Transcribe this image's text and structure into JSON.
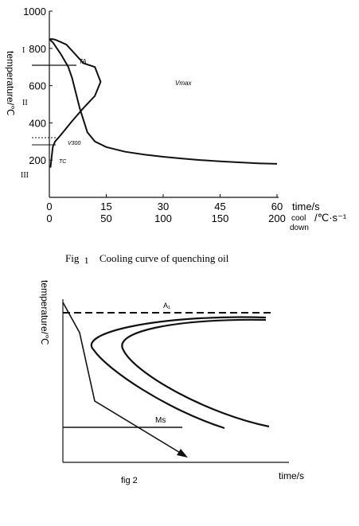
{
  "figure1": {
    "caption_prefix": "Fig",
    "caption_number": "1",
    "caption_text": "Cooling curve of quenching oil",
    "y_axis_label": "temperature/℃",
    "x_axis_label_time": "time/s",
    "x_axis_label_rate_top": "cool",
    "x_axis_label_rate_bottom": "down",
    "x_axis_label_rate_unit": "/℃·s⁻¹",
    "stage_labels": [
      "I",
      "II",
      "III"
    ],
    "point_labels": {
      "ta": "TA",
      "vmax": "Vmax",
      "v300": "V300",
      "tc": "TC"
    }
  },
  "figure2": {
    "caption": "fig 2",
    "y_axis_label": "temperature/℃",
    "x_axis_label": "time/s",
    "a1_label": "A₁",
    "ms_label": "Ms"
  },
  "chart_data": [
    {
      "type": "line",
      "title": "Cooling curve of quenching oil",
      "xlabel": "time/s",
      "x2label": "cool down /℃·s⁻¹",
      "ylabel": "temperature/℃",
      "xlim": [
        0,
        60
      ],
      "x2lim": [
        0,
        200
      ],
      "ylim": [
        0,
        1000
      ],
      "xticks": [
        0,
        15,
        30,
        45,
        60
      ],
      "x2ticks": [
        0,
        50,
        100,
        150,
        200
      ],
      "yticks": [
        200,
        400,
        600,
        800,
        1000
      ],
      "grid": false,
      "series": [
        {
          "name": "cooling curve (time/s)",
          "axis": "time",
          "x": [
            0,
            1,
            2,
            3,
            4,
            5,
            6,
            8,
            10,
            12,
            15,
            20,
            25,
            30,
            35,
            40,
            45,
            50,
            55,
            60
          ],
          "y": [
            850,
            830,
            800,
            770,
            735,
            700,
            640,
            480,
            350,
            300,
            270,
            245,
            230,
            218,
            208,
            200,
            193,
            188,
            183,
            180
          ]
        },
        {
          "name": "cooling rate curve (cool down /℃·s⁻¹)",
          "axis": "rate",
          "x": [
            0,
            3,
            6,
            15,
            30,
            40,
            45,
            40,
            30,
            20,
            12,
            8,
            5,
            3,
            1
          ],
          "y": [
            850,
            850,
            845,
            820,
            720,
            700,
            620,
            545,
            480,
            410,
            350,
            320,
            300,
            270,
            160
          ]
        }
      ],
      "annotations": [
        {
          "label": "TA",
          "x_rate": 25,
          "y": 730
        },
        {
          "label": "Vmax",
          "x_rate": 100,
          "y": 620
        },
        {
          "label": "V300",
          "x_rate": 3,
          "y": 300
        },
        {
          "label": "TC",
          "x_rate": 0,
          "y": 250
        }
      ],
      "stages": [
        "I",
        "II",
        "III"
      ]
    },
    {
      "type": "line",
      "title": "",
      "xlabel": "time/s",
      "ylabel": "temperature/℃",
      "grid": false,
      "reference_lines": [
        {
          "label": "A₁",
          "style": "dashed"
        },
        {
          "label": "Ms",
          "style": "solid"
        }
      ],
      "series": [
        {
          "name": "transformation start curve"
        },
        {
          "name": "transformation end curve"
        },
        {
          "name": "cooling path (arrow)"
        }
      ]
    }
  ]
}
